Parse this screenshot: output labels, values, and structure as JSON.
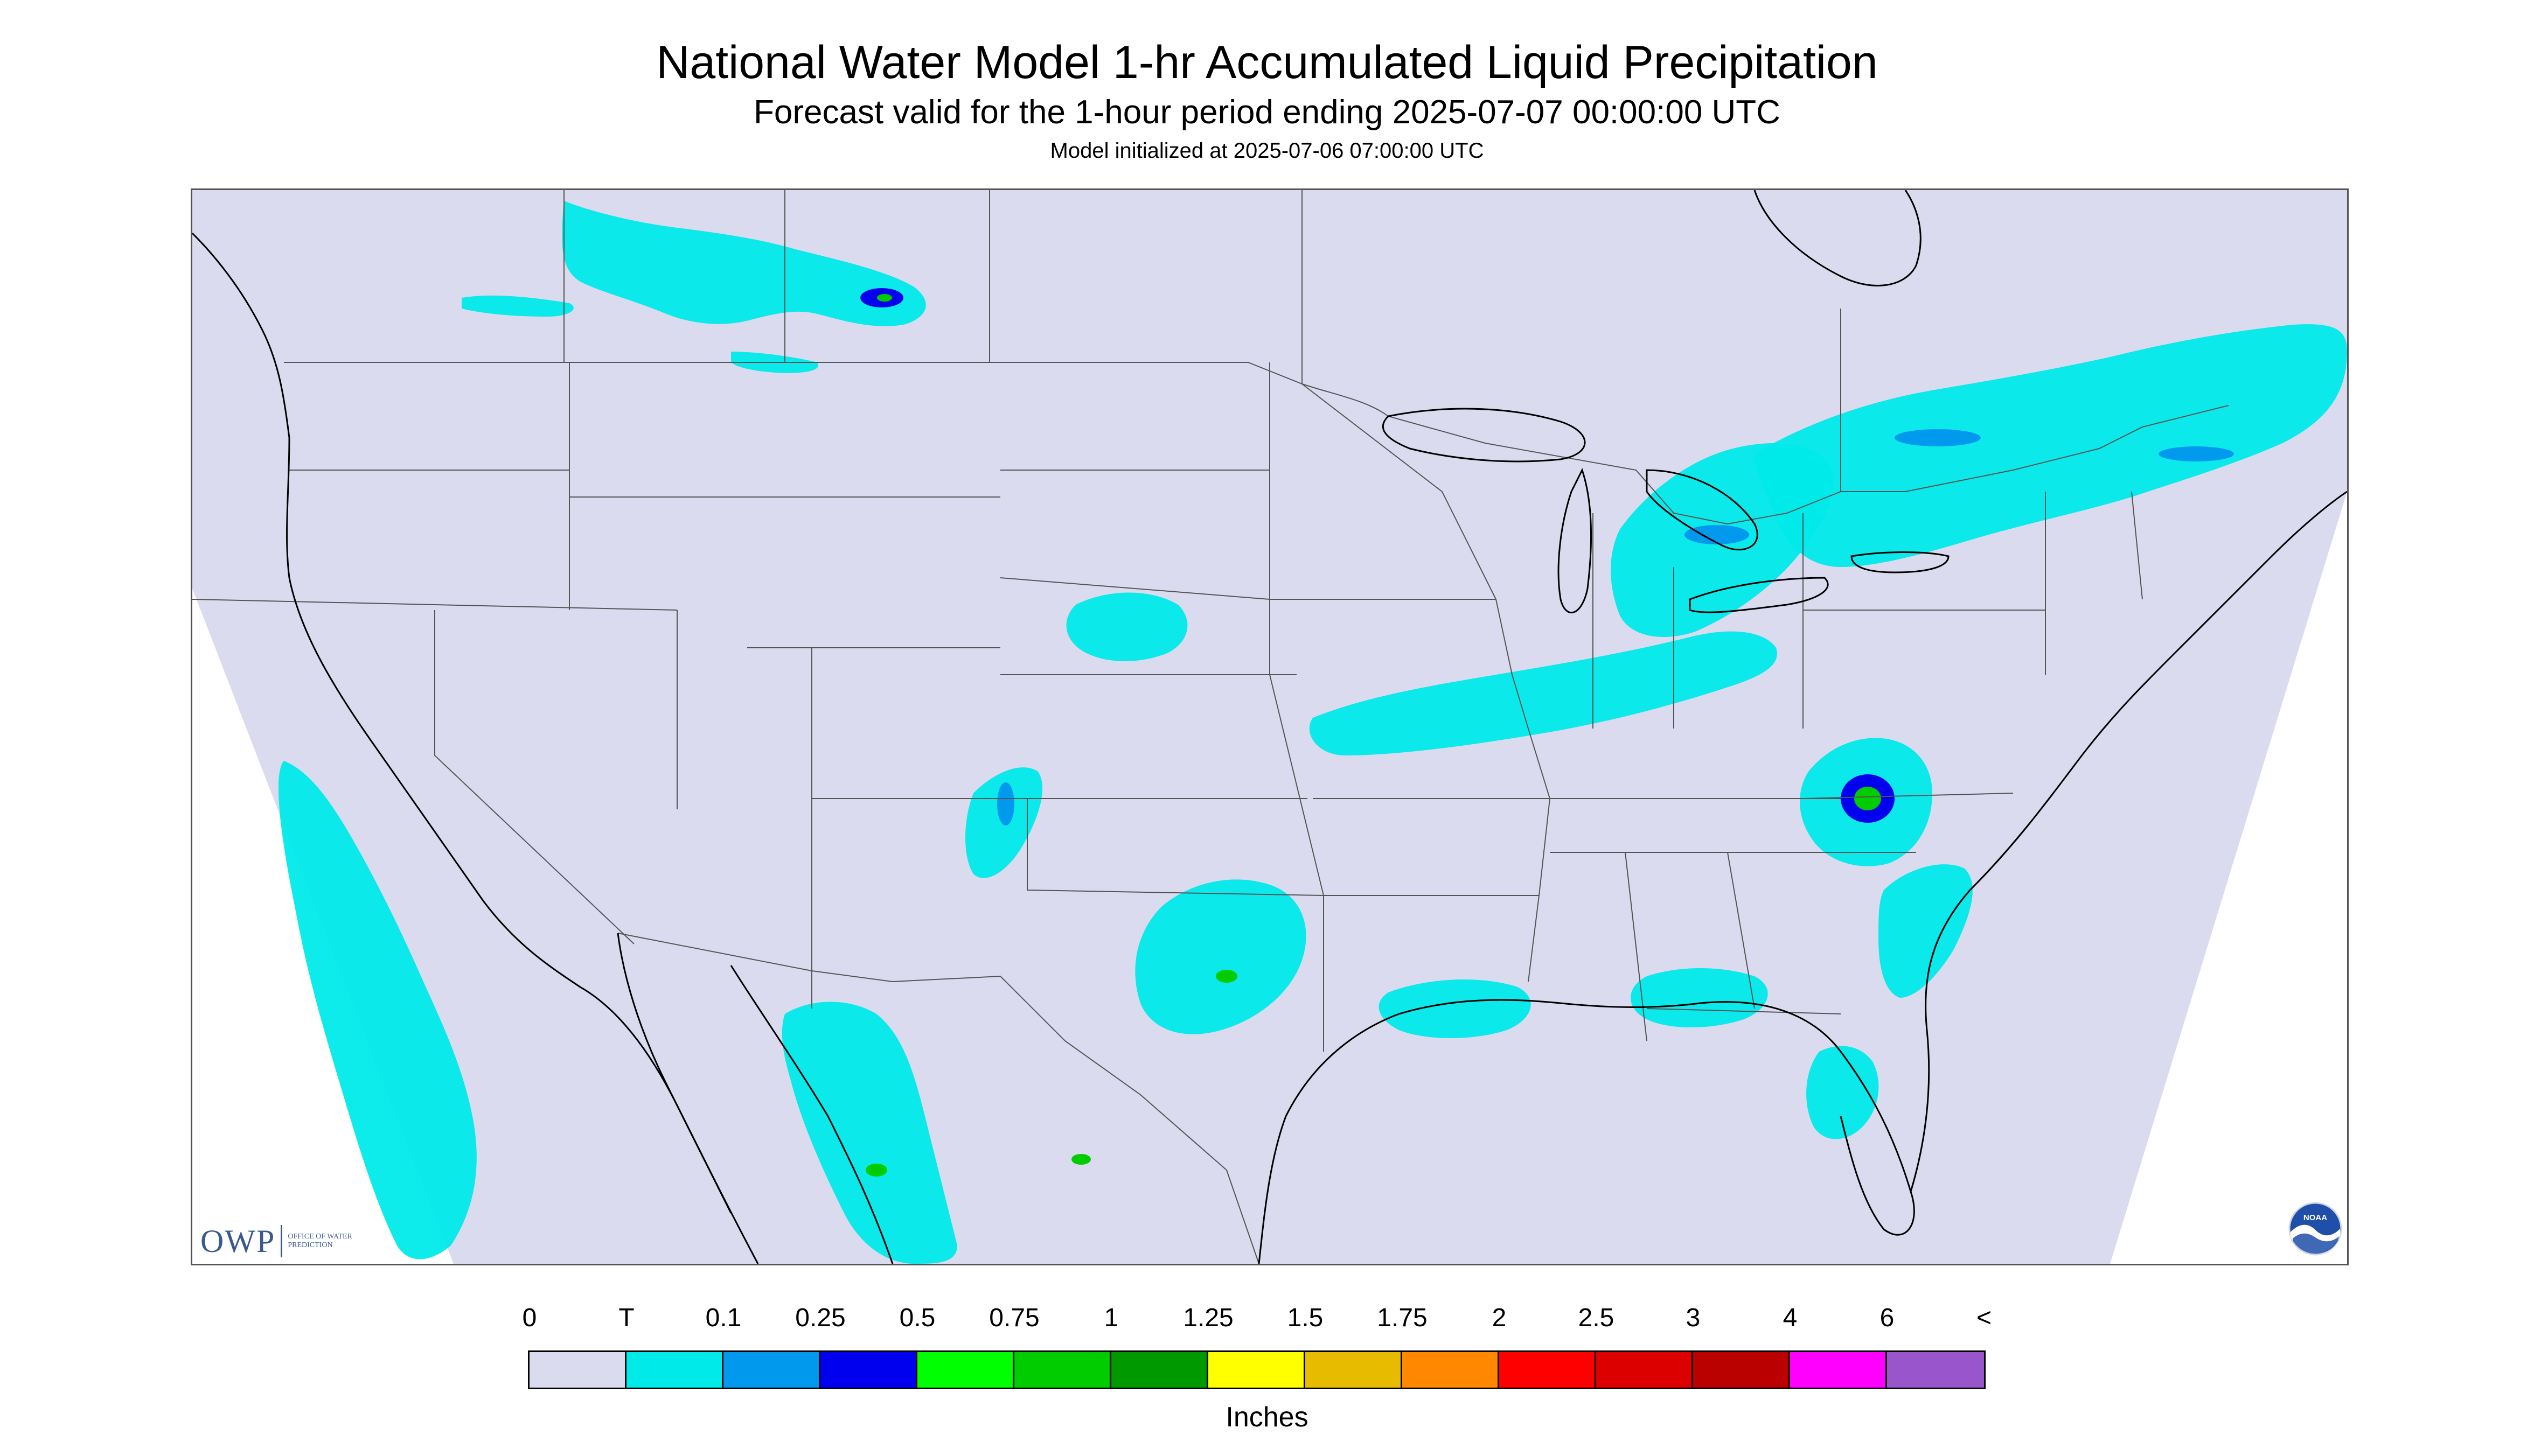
{
  "header": {
    "title": "National Water Model 1-hr Accumulated Liquid Precipitation",
    "subtitle": "Forecast valid for the 1-hour period ending 2025-07-07 00:00:00 UTC",
    "init_line": "Model initialized at 2025-07-06 07:00:00 UTC"
  },
  "logos": {
    "owp_mark": "OWP",
    "owp_text": "Office of Water Prediction",
    "noaa_text": "NOAA"
  },
  "legend": {
    "tick_labels": [
      "0",
      "T",
      "0.1",
      "0.25",
      "0.5",
      "0.75",
      "1",
      "1.25",
      "1.5",
      "1.75",
      "2",
      "2.5",
      "3",
      "4",
      "6",
      "<"
    ],
    "colors": [
      "#dbdbef",
      "#00eaea",
      "#0099ee",
      "#0000ee",
      "#00ff00",
      "#00cc00",
      "#009900",
      "#ffff00",
      "#e6bb00",
      "#ff8800",
      "#ff0000",
      "#dd0000",
      "#bb0000",
      "#ff00ff",
      "#9955cc"
    ],
    "units": "Inches"
  },
  "map": {
    "background_color": "#dbdbef",
    "outside_domain_color": "#ffffff",
    "boundary_color": "#555555",
    "coast_color": "#000000"
  },
  "precip_areas": [
    {
      "name": "southern-canada-prairies",
      "cat": 1
    },
    {
      "name": "great-lakes-band",
      "cat": 1
    },
    {
      "name": "ontario-quebec-band",
      "cat": 1
    },
    {
      "name": "pacific-offshore",
      "cat": 1
    },
    {
      "name": "carolinas-storm",
      "cat": 3
    },
    {
      "name": "texas-convection",
      "cat": 1
    },
    {
      "name": "mexico-sierra-madre",
      "cat": 1
    },
    {
      "name": "central-plains",
      "cat": 1
    },
    {
      "name": "florida-convection",
      "cat": 1
    }
  ]
}
